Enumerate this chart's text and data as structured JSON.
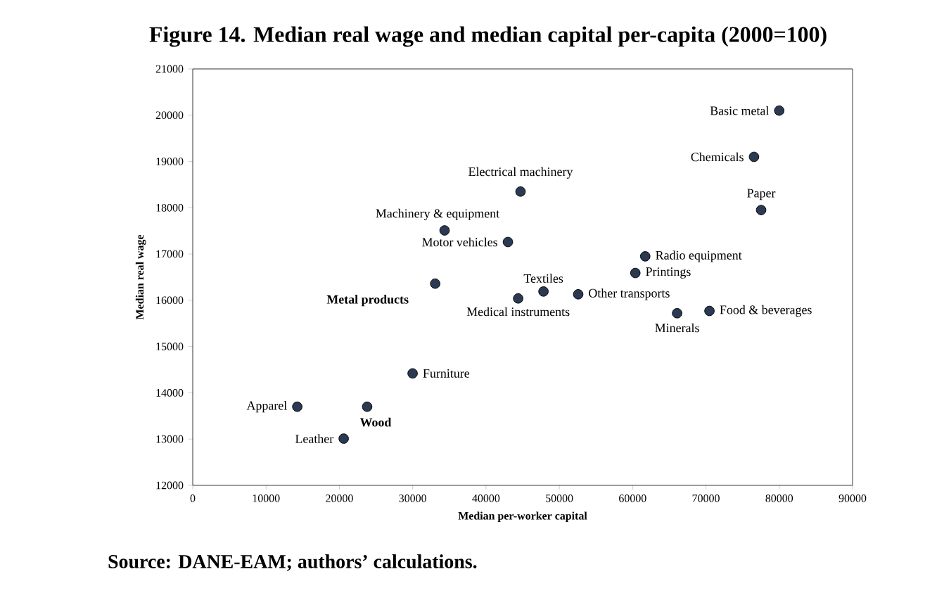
{
  "chart_data": {
    "type": "scatter",
    "title": "Figure 14. Median real wage and median capital per-capita (2000=100)",
    "xlabel": "Median per-worker capital",
    "ylabel": "Median real wage",
    "x": [
      80000,
      76560,
      77530,
      44710,
      34350,
      42990,
      61720,
      60370,
      33070,
      44390,
      47840,
      52580,
      66070,
      70480,
      29990,
      14260,
      23790,
      20590
    ],
    "values": [
      20100,
      19100,
      17950,
      18350,
      17510,
      17260,
      16950,
      16590,
      16360,
      16040,
      16190,
      16130,
      15720,
      15770,
      14420,
      13700,
      13700,
      13010
    ],
    "color": "#2b3a52",
    "grid": false,
    "xlim": [
      0,
      90000
    ],
    "xticks": [
      0,
      10000,
      20000,
      30000,
      40000,
      50000,
      60000,
      70000,
      80000,
      90000
    ],
    "ylim": [
      12000,
      21000
    ],
    "yticks": [
      12000,
      13000,
      14000,
      15000,
      16000,
      17000,
      18000,
      19000,
      20000,
      21000
    ],
    "annotations": [
      {
        "text": "Basic metal",
        "x": 80000,
        "y": 20100
      },
      {
        "text": "Chemicals",
        "x": 76560,
        "y": 19100
      },
      {
        "text": "Paper",
        "x": 77530,
        "y": 17950
      },
      {
        "text": "Electrical machinery",
        "x": 44710,
        "y": 18350
      },
      {
        "text": "Machinery & equipment",
        "x": 34350,
        "y": 17510
      },
      {
        "text": "Motor vehicles",
        "x": 42990,
        "y": 17260
      },
      {
        "text": "Radio equipment",
        "x": 61720,
        "y": 16950
      },
      {
        "text": "Printings",
        "x": 60370,
        "y": 16590
      },
      {
        "text": "**Metal products**",
        "x": 33070,
        "y": 16360
      },
      {
        "text": "Medical instruments",
        "x": 44390,
        "y": 16040
      },
      {
        "text": "Textiles",
        "x": 47840,
        "y": 16190
      },
      {
        "text": "Other transports",
        "x": 52580,
        "y": 16130
      },
      {
        "text": "Minerals",
        "x": 66070,
        "y": 15720
      },
      {
        "text": "Food & beverages",
        "x": 70480,
        "y": 15770
      },
      {
        "text": "Furniture",
        "x": 29990,
        "y": 14420
      },
      {
        "text": "Apparel",
        "x": 14260,
        "y": 13700
      },
      {
        "text": "**Wood**",
        "x": 23790,
        "y": 13700
      },
      {
        "text": "Leather",
        "x": 20590,
        "y": 13010
      },
      "Source: DANE-EAM; authors’ calculations."
    ]
  }
}
